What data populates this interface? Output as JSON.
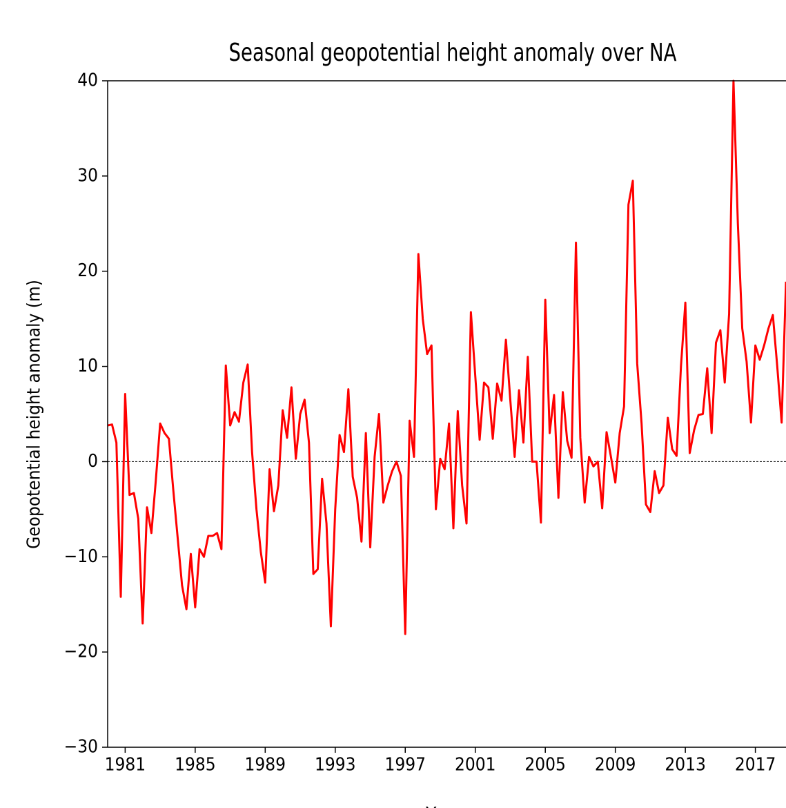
{
  "chart_data": {
    "type": "line",
    "title": "Seasonal geopotential height anomaly over NA",
    "xlabel": "Years",
    "ylabel": "Geopotential height anomaly (m)",
    "x": [
      1980,
      1980.25,
      1980.5,
      1980.75,
      1981,
      1981.25,
      1981.5,
      1981.75,
      1982,
      1982.25,
      1982.5,
      1982.75,
      1983,
      1983.25,
      1983.5,
      1983.75,
      1984,
      1984.25,
      1984.5,
      1984.75,
      1985,
      1985.25,
      1985.5,
      1985.75,
      1986,
      1986.25,
      1986.5,
      1986.75,
      1987,
      1987.25,
      1987.5,
      1987.75,
      1988,
      1988.25,
      1988.5,
      1988.75,
      1989,
      1989.25,
      1989.5,
      1989.75,
      1990,
      1990.25,
      1990.5,
      1990.75,
      1991,
      1991.25,
      1991.5,
      1991.75,
      1992,
      1992.25,
      1992.5,
      1992.75,
      1993,
      1993.25,
      1993.5,
      1993.75,
      1994,
      1994.25,
      1994.5,
      1994.75,
      1995,
      1995.25,
      1995.5,
      1995.75,
      1996,
      1996.25,
      1996.5,
      1996.75,
      1997,
      1997.25,
      1997.5,
      1997.75,
      1998,
      1998.25,
      1998.5,
      1998.75,
      1999,
      1999.25,
      1999.5,
      1999.75,
      2000,
      2000.25,
      2000.5,
      2000.75,
      2001,
      2001.25,
      2001.5,
      2001.75,
      2002,
      2002.25,
      2002.5,
      2002.75,
      2003,
      2003.25,
      2003.5,
      2003.75,
      2004,
      2004.25,
      2004.5,
      2004.75,
      2005,
      2005.25,
      2005.5,
      2005.75,
      2006,
      2006.25,
      2006.5,
      2006.75,
      2007,
      2007.25,
      2007.5,
      2007.75,
      2008,
      2008.25,
      2008.5,
      2008.75,
      2009,
      2009.25,
      2009.5,
      2009.75,
      2010,
      2010.25,
      2010.5,
      2010.75,
      2011,
      2011.25,
      2011.5,
      2011.75,
      2012,
      2012.25,
      2012.5,
      2012.75,
      2013,
      2013.25,
      2013.5,
      2013.75,
      2014,
      2014.25,
      2014.5,
      2014.75,
      2015,
      2015.25,
      2015.5,
      2015.75,
      2016,
      2016.25,
      2016.5,
      2016.75,
      2017,
      2017.25,
      2017.5,
      2017.75,
      2018,
      2018.25,
      2018.5,
      2018.75
    ],
    "series": [
      {
        "name": "anomaly",
        "color": "#ff0000",
        "values": [
          3.8,
          3.9,
          2,
          -14.2,
          7.1,
          -3.5,
          -3.3,
          -6,
          -17,
          -4.8,
          -7.5,
          -2,
          4,
          3,
          2.4,
          -3,
          -8,
          -13,
          -15.5,
          -9.7,
          -15.3,
          -9.2,
          -10,
          -7.8,
          -7.8,
          -7.5,
          -9.2,
          10.1,
          3.8,
          5.2,
          4.2,
          8.3,
          10.2,
          1,
          -5,
          -9.5,
          -12.7,
          -0.8,
          -5.2,
          -2.5,
          5.4,
          2.5,
          7.8,
          0.3,
          5,
          6.5,
          2,
          -11.8,
          -11.3,
          -1.8,
          -6.5,
          -17.3,
          -5,
          2.8,
          1,
          7.6,
          -1.6,
          -3.8,
          -8.4,
          3,
          -9,
          0.5,
          5,
          -4.3,
          -2.5,
          -1,
          0,
          -1.5,
          -18.1,
          4.3,
          0.5,
          21.8,
          15,
          11.3,
          12.2,
          -5,
          0.3,
          -0.8,
          4,
          -7,
          5.3,
          -2.5,
          -6.5,
          15.7,
          9,
          2.3,
          8.3,
          7.8,
          2.4,
          8.2,
          6.4,
          12.8,
          6.5,
          0.5,
          7.5,
          2,
          11,
          0,
          0,
          -6.4,
          17,
          3,
          7,
          -3.8,
          7.3,
          2.2,
          0.4,
          23,
          2.5,
          -4.3,
          0.5,
          -0.5,
          0,
          -4.9,
          3.1,
          0.5,
          -2.2,
          3,
          5.8,
          27,
          29.5,
          10.3,
          4,
          -4.5,
          -5.3,
          -1,
          -3.3,
          -2.5,
          4.6,
          1.3,
          0.6,
          10,
          16.7,
          0.9,
          3.3,
          4.9,
          5,
          9.8,
          3,
          12.5,
          13.8,
          8.3,
          15.5,
          40,
          25,
          14,
          10.5,
          4.1,
          12.2,
          10.7,
          12.2,
          14,
          15.4,
          10,
          4.1,
          18.9
        ]
      }
    ],
    "hline": 0,
    "xlim": [
      1980,
      2018.75
    ],
    "ylim": [
      -30,
      40
    ],
    "xticks": [
      1981,
      1985,
      1989,
      1993,
      1997,
      2001,
      2005,
      2009,
      2013,
      2017
    ],
    "yticks": [
      {
        "value": -30,
        "label": "−30"
      },
      {
        "value": -20,
        "label": "−20"
      },
      {
        "value": -10,
        "label": "−10"
      },
      0,
      10,
      20,
      30,
      40
    ]
  }
}
